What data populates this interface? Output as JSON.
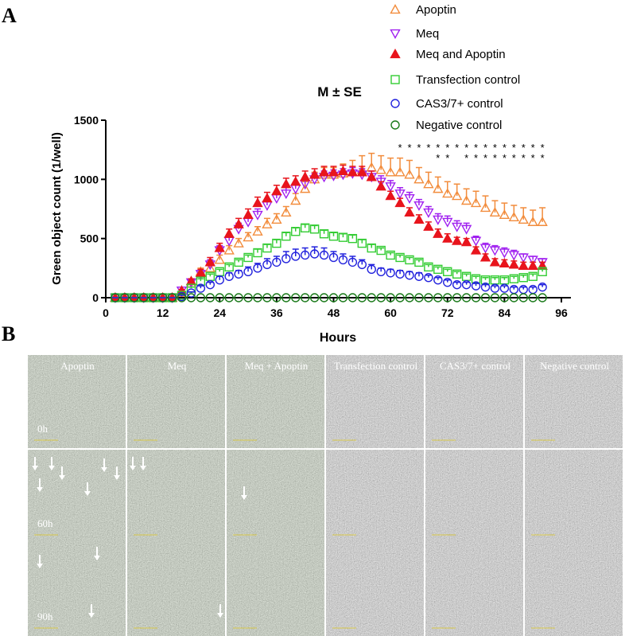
{
  "panel_labels": [
    "A",
    "B"
  ],
  "chart_data": {
    "type": "scatter",
    "title": "M ± SE",
    "x_label": "Hours",
    "y_label": "Green object count (1/well)",
    "x": [
      2,
      4,
      6,
      8,
      10,
      12,
      14,
      16,
      18,
      20,
      22,
      24,
      26,
      28,
      30,
      32,
      34,
      36,
      38,
      40,
      42,
      44,
      46,
      48,
      50,
      52,
      54,
      56,
      58,
      60,
      62,
      64,
      66,
      68,
      70,
      72,
      74,
      76,
      78,
      80,
      82,
      84,
      86,
      88,
      90,
      92
    ],
    "xlim": [
      0,
      98
    ],
    "xticks": [
      0,
      12,
      24,
      36,
      48,
      60,
      72,
      84,
      96
    ],
    "ylim": [
      0,
      1500
    ],
    "yticks": [
      0,
      500,
      1000,
      1500
    ],
    "series": [
      {
        "name": "Apoptin",
        "color": "#f28c3c",
        "marker": "triangle-up-open",
        "values": [
          0,
          0,
          0,
          0,
          0,
          0,
          0,
          40,
          120,
          220,
          250,
          320,
          400,
          460,
          510,
          560,
          620,
          660,
          720,
          820,
          920,
          1000,
          1040,
          1040,
          1050,
          1060,
          1080,
          1100,
          1080,
          1060,
          1060,
          1040,
          1000,
          960,
          920,
          880,
          860,
          820,
          800,
          760,
          720,
          700,
          680,
          660,
          640,
          640
        ],
        "errors": [
          0,
          0,
          0,
          0,
          0,
          0,
          0,
          10,
          20,
          30,
          30,
          40,
          40,
          40,
          40,
          40,
          50,
          50,
          50,
          60,
          60,
          60,
          60,
          60,
          80,
          100,
          120,
          120,
          120,
          120,
          120,
          120,
          100,
          100,
          100,
          100,
          100,
          100,
          100,
          100,
          100,
          100,
          100,
          100,
          100,
          120
        ]
      },
      {
        "name": "Meq",
        "color": "#a020f0",
        "marker": "triangle-down-open",
        "values": [
          0,
          0,
          0,
          0,
          0,
          0,
          0,
          60,
          130,
          200,
          280,
          400,
          480,
          580,
          640,
          700,
          780,
          840,
          880,
          920,
          960,
          1000,
          1020,
          1030,
          1040,
          1050,
          1040,
          1020,
          980,
          940,
          880,
          840,
          780,
          720,
          660,
          640,
          600,
          580,
          480,
          420,
          400,
          380,
          360,
          340,
          320,
          300
        ],
        "errors": [
          0,
          0,
          0,
          0,
          0,
          0,
          0,
          10,
          20,
          30,
          40,
          40,
          40,
          50,
          50,
          50,
          50,
          50,
          50,
          50,
          50,
          50,
          50,
          50,
          50,
          50,
          50,
          50,
          50,
          50,
          50,
          50,
          50,
          50,
          50,
          50,
          50,
          50,
          40,
          40,
          40,
          40,
          40,
          30,
          30,
          30
        ]
      },
      {
        "name": "Meq and Apoptin",
        "color": "#e8141c",
        "marker": "triangle-up-filled",
        "values": [
          0,
          0,
          0,
          0,
          0,
          0,
          0,
          60,
          140,
          210,
          300,
          420,
          540,
          620,
          700,
          800,
          840,
          900,
          960,
          980,
          1020,
          1040,
          1060,
          1060,
          1070,
          1060,
          1060,
          1020,
          940,
          860,
          800,
          720,
          660,
          600,
          540,
          500,
          480,
          470,
          400,
          340,
          300,
          290,
          280,
          270,
          270,
          270
        ],
        "errors": [
          0,
          0,
          0,
          0,
          0,
          0,
          0,
          10,
          20,
          30,
          40,
          40,
          40,
          50,
          50,
          50,
          50,
          50,
          50,
          50,
          50,
          50,
          50,
          50,
          50,
          50,
          50,
          50,
          40,
          40,
          40,
          40,
          40,
          40,
          40,
          40,
          30,
          30,
          30,
          30,
          30,
          30,
          30,
          30,
          30,
          30
        ]
      },
      {
        "name": "Transfection control",
        "color": "#33cc33",
        "marker": "square-open",
        "values": [
          0,
          0,
          0,
          0,
          0,
          0,
          0,
          20,
          80,
          140,
          180,
          220,
          260,
          300,
          340,
          380,
          420,
          460,
          520,
          560,
          590,
          580,
          540,
          520,
          510,
          500,
          460,
          420,
          400,
          360,
          340,
          320,
          300,
          260,
          240,
          220,
          200,
          180,
          160,
          150,
          150,
          150,
          160,
          170,
          180,
          220
        ],
        "errors": [
          0,
          0,
          0,
          0,
          0,
          0,
          0,
          10,
          10,
          20,
          20,
          20,
          20,
          20,
          20,
          30,
          30,
          30,
          30,
          30,
          30,
          30,
          30,
          30,
          30,
          30,
          30,
          30,
          20,
          20,
          20,
          20,
          20,
          20,
          20,
          20,
          20,
          20,
          20,
          20,
          20,
          20,
          20,
          20,
          20,
          20
        ]
      },
      {
        "name": "CAS3/7+ control",
        "color": "#2222dd",
        "marker": "circle-open",
        "values": [
          0,
          0,
          0,
          0,
          0,
          0,
          0,
          10,
          40,
          80,
          110,
          150,
          180,
          200,
          220,
          250,
          280,
          300,
          330,
          350,
          360,
          370,
          360,
          340,
          320,
          300,
          280,
          240,
          220,
          210,
          200,
          190,
          180,
          170,
          150,
          130,
          110,
          110,
          100,
          90,
          80,
          80,
          70,
          70,
          70,
          90
        ],
        "errors": [
          0,
          0,
          0,
          0,
          0,
          0,
          0,
          10,
          10,
          20,
          20,
          30,
          30,
          30,
          40,
          40,
          50,
          50,
          60,
          60,
          60,
          60,
          60,
          50,
          50,
          50,
          40,
          40,
          30,
          30,
          30,
          30,
          30,
          20,
          20,
          20,
          20,
          20,
          20,
          20,
          20,
          20,
          20,
          20,
          20,
          20
        ]
      },
      {
        "name": "Negative control",
        "color": "#1a7a1a",
        "marker": "circle-open",
        "values": [
          0,
          0,
          0,
          0,
          0,
          0,
          0,
          0,
          0,
          0,
          0,
          0,
          0,
          0,
          0,
          0,
          0,
          0,
          0,
          0,
          0,
          0,
          0,
          0,
          0,
          0,
          0,
          0,
          0,
          0,
          0,
          0,
          0,
          0,
          0,
          0,
          0,
          0,
          0,
          0,
          0,
          0,
          0,
          0,
          0,
          0
        ]
      }
    ],
    "significance": [
      {
        "label": "*",
        "x": [
          62,
          64,
          66,
          68,
          70,
          72,
          74,
          76,
          78,
          80,
          82,
          84,
          86,
          88,
          90,
          92
        ]
      },
      {
        "label": "*",
        "x": [
          70,
          72,
          76,
          78,
          80,
          82,
          84,
          86,
          88,
          90,
          92
        ]
      }
    ]
  },
  "image_grid": {
    "columns": [
      "Apoptin",
      "Meq",
      "Meq + Apoptin",
      "Transfection control",
      "CAS3/7+ control",
      "Negative control"
    ],
    "rows": [
      "0h",
      "60h",
      "90h"
    ]
  }
}
